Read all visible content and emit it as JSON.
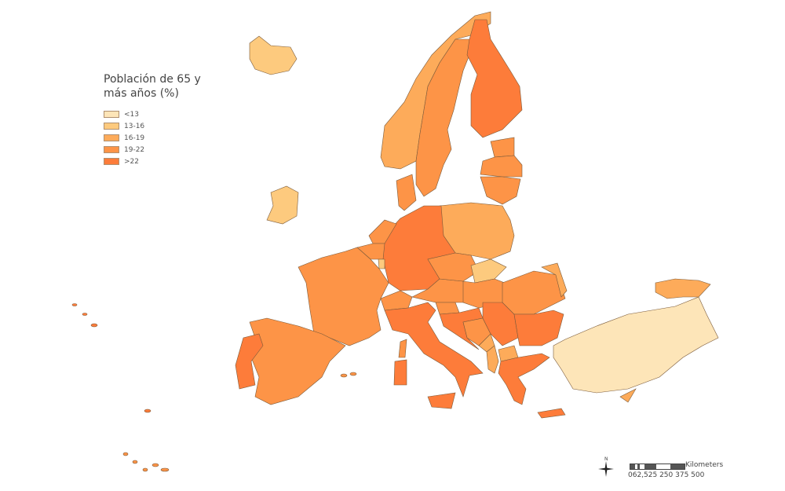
{
  "legend": {
    "title": "Población de 65 y más años (%)",
    "classes": [
      {
        "label": "<13",
        "color": "#fde5b8"
      },
      {
        "label": "13-16",
        "color": "#fdca7e"
      },
      {
        "label": "16-19",
        "color": "#fdab5a"
      },
      {
        "label": "19-22",
        "color": "#fd9447"
      },
      {
        "label": ">22",
        "color": "#fd7c3a"
      }
    ]
  },
  "regions": {
    "iceland": 1,
    "ireland": 1,
    "norway": 2,
    "sweden": 3,
    "finland": 4,
    "estonia": 3,
    "latvia": 3,
    "lithuania": 3,
    "denmark": 3,
    "poland": 2,
    "germany": 4,
    "netherlands": 3,
    "belgium": 3,
    "luxembourg": 1,
    "france": 3,
    "spain": 3,
    "portugal": 4,
    "switzerland": 3,
    "italy": 4,
    "austria": 3,
    "czechia": 3,
    "slovakia": 1,
    "hungary": 3,
    "slovenia": 3,
    "croatia": 4,
    "bosnia": 3,
    "serbia": 4,
    "montenegro": 2,
    "albania": 2,
    "north-macedonia": 2,
    "romania": 3,
    "moldova": 2,
    "bulgaria": 4,
    "greece": 4,
    "turkey": 0,
    "cyprus": 2,
    "georgia": 2
  },
  "scale": {
    "unit": "Kilometers",
    "ticks": "062,525  250  375  500",
    "north_label": "N"
  }
}
